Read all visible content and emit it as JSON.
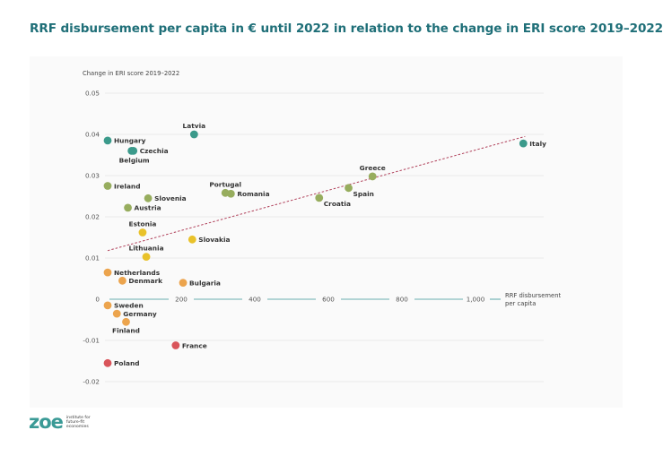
{
  "title": "RRF disbursement per capita in € until 2022 in relation to the change in ERI score 2019–2022",
  "logo": {
    "mark": "zoe",
    "line1": "institute for",
    "line2": "future-fit",
    "line3": "economies"
  },
  "chart_data": {
    "type": "scatter",
    "title": "RRF disbursement per capita in € until 2022 in relation to the change in ERI score 2019–2022",
    "ylabel": "Change in ERI score 2019–2022",
    "xlabel_line1": "RRF disbursement",
    "xlabel_line2": "per capita",
    "xlim": [
      -10,
      1180
    ],
    "ylim": [
      -0.02,
      0.05
    ],
    "x_ticks": [
      {
        "value": 200,
        "label": "200"
      },
      {
        "value": 400,
        "label": "400"
      },
      {
        "value": 600,
        "label": "600"
      },
      {
        "value": 800,
        "label": "800"
      },
      {
        "value": 1000,
        "label": "1,000"
      }
    ],
    "y_ticks": [
      {
        "value": 0.05,
        "label": "0.05"
      },
      {
        "value": 0.04,
        "label": "0.04"
      },
      {
        "value": 0.03,
        "label": "0.03"
      },
      {
        "value": 0.02,
        "label": "0.02"
      },
      {
        "value": 0.01,
        "label": "0.01"
      },
      {
        "value": 0,
        "label": "0"
      },
      {
        "value": -0.01,
        "label": "-0.01"
      },
      {
        "value": -0.02,
        "label": "-0.02"
      }
    ],
    "trendline": {
      "x": [
        0,
        1135
      ],
      "y": [
        0.0118,
        0.0395
      ],
      "color": "#b0405a"
    },
    "colors": {
      "teal": "#3b9a8b",
      "olive": "#97ad5e",
      "yellow": "#e9c22a",
      "orange": "#eca44d",
      "red": "#d9545a"
    },
    "points": [
      {
        "name": "Latvia",
        "x": 235,
        "y": 0.04,
        "color": "teal",
        "label_pos": "above"
      },
      {
        "name": "Hungary",
        "x": 0,
        "y": 0.0385,
        "color": "teal",
        "label_pos": "right"
      },
      {
        "name": "Czechia",
        "x": 70,
        "y": 0.036,
        "color": "teal",
        "label_pos": "right"
      },
      {
        "name": "Belgium",
        "x": 65,
        "y": 0.036,
        "color": "teal",
        "label_pos": "below-left"
      },
      {
        "name": "Italy",
        "x": 1130,
        "y": 0.0378,
        "color": "teal",
        "label_pos": "right"
      },
      {
        "name": "Greece",
        "x": 720,
        "y": 0.0298,
        "color": "olive",
        "label_pos": "above"
      },
      {
        "name": "Ireland",
        "x": 0,
        "y": 0.0275,
        "color": "olive",
        "label_pos": "right"
      },
      {
        "name": "Portugal",
        "x": 320,
        "y": 0.0258,
        "color": "olive",
        "label_pos": "above"
      },
      {
        "name": "Romania",
        "x": 335,
        "y": 0.0256,
        "color": "olive",
        "label_pos": "right"
      },
      {
        "name": "Spain",
        "x": 655,
        "y": 0.027,
        "color": "olive",
        "label_pos": "below-right"
      },
      {
        "name": "Slovenia",
        "x": 110,
        "y": 0.0245,
        "color": "olive",
        "label_pos": "right"
      },
      {
        "name": "Croatia",
        "x": 575,
        "y": 0.0246,
        "color": "olive",
        "label_pos": "below-right"
      },
      {
        "name": "Austria",
        "x": 55,
        "y": 0.0222,
        "color": "olive",
        "label_pos": "right"
      },
      {
        "name": "Estonia",
        "x": 95,
        "y": 0.0162,
        "color": "yellow",
        "label_pos": "above"
      },
      {
        "name": "Slovakia",
        "x": 230,
        "y": 0.0145,
        "color": "yellow",
        "label_pos": "right"
      },
      {
        "name": "Lithuania",
        "x": 105,
        "y": 0.0103,
        "color": "yellow",
        "label_pos": "above"
      },
      {
        "name": "Netherlands",
        "x": 0,
        "y": 0.0065,
        "color": "orange",
        "label_pos": "right"
      },
      {
        "name": "Denmark",
        "x": 40,
        "y": 0.0045,
        "color": "orange",
        "label_pos": "right"
      },
      {
        "name": "Bulgaria",
        "x": 205,
        "y": 0.004,
        "color": "orange",
        "label_pos": "right"
      },
      {
        "name": "Sweden",
        "x": 0,
        "y": -0.0015,
        "color": "orange",
        "label_pos": "right"
      },
      {
        "name": "Germany",
        "x": 25,
        "y": -0.0035,
        "color": "orange",
        "label_pos": "right"
      },
      {
        "name": "Finland",
        "x": 50,
        "y": -0.0055,
        "color": "orange",
        "label_pos": "below"
      },
      {
        "name": "France",
        "x": 185,
        "y": -0.0112,
        "color": "red",
        "label_pos": "right"
      },
      {
        "name": "Poland",
        "x": 0,
        "y": -0.0155,
        "color": "red",
        "label_pos": "right"
      }
    ]
  }
}
